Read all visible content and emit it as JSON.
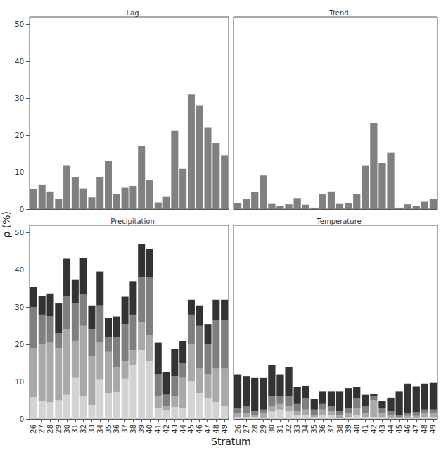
{
  "chart_data": [
    {
      "type": "bar",
      "title": "Lag",
      "ylabel": "ρ (%)",
      "tick_labels": "y",
      "grid": false,
      "categories": [
        "26",
        "27",
        "28",
        "29",
        "30",
        "31",
        "32",
        "33",
        "34",
        "35",
        "36",
        "37",
        "38",
        "39",
        "40",
        "41",
        "42",
        "43",
        "44",
        "45",
        "46",
        "47",
        "48",
        "49"
      ],
      "color": "#808080",
      "values": [
        5.5,
        6.5,
        4.8,
        2.8,
        11.7,
        8.7,
        5.6,
        3.2,
        8.7,
        13.1,
        4.0,
        5.8,
        6.3,
        17.0,
        7.8,
        1.8,
        3.3,
        21.2,
        10.9,
        31.0,
        28.1,
        22.0,
        17.9,
        14.6
      ],
      "ylim": [
        0,
        52
      ],
      "yticks": [
        0,
        10,
        20,
        30,
        40,
        50
      ]
    },
    {
      "type": "bar",
      "title": "Trend",
      "tick_labels": false,
      "grid": false,
      "categories": [
        "26",
        "27",
        "28",
        "29",
        "30",
        "31",
        "32",
        "33",
        "34",
        "35",
        "36",
        "37",
        "38",
        "39",
        "40",
        "41",
        "42",
        "43",
        "44",
        "45",
        "46",
        "47",
        "48",
        "49"
      ],
      "color": "#808080",
      "values": [
        1.7,
        2.7,
        4.6,
        9.1,
        1.4,
        0.8,
        1.3,
        3.0,
        1.2,
        0.4,
        4.0,
        4.8,
        1.4,
        1.6,
        4.0,
        11.7,
        23.4,
        12.5,
        15.3,
        0.4,
        1.3,
        0.8,
        2.0,
        2.7
      ],
      "ylim": [
        0,
        52
      ],
      "yticks": [
        0,
        10,
        20,
        30,
        40,
        50
      ]
    },
    {
      "type": "bar",
      "title": "Precipitation",
      "xlabel": "Stratum",
      "tick_labels": true,
      "grid": false,
      "stacked": true,
      "categories": [
        "26",
        "27",
        "28",
        "29",
        "30",
        "31",
        "32",
        "33",
        "34",
        "35",
        "36",
        "37",
        "38",
        "39",
        "40",
        "41",
        "42",
        "43",
        "44",
        "45",
        "46",
        "47",
        "48",
        "49"
      ],
      "series": [
        {
          "color": "#d3d3d3",
          "values": [
            5.8,
            4.8,
            4.5,
            5,
            6.5,
            11,
            6,
            3.8,
            10.5,
            7,
            7.2,
            10.8,
            14.5,
            18.5,
            15.5,
            3,
            2.2,
            3.2,
            3,
            10.2,
            7,
            5.5,
            4.5,
            3.5
          ]
        },
        {
          "color": "#a9a9a9",
          "values": [
            13.2,
            15.2,
            16,
            14,
            17.5,
            10,
            19,
            13.2,
            10,
            11,
            6.8,
            4.7,
            4,
            7.5,
            7,
            3,
            1.3,
            2.8,
            8,
            9.8,
            6.5,
            6.5,
            9,
            10
          ]
        },
        {
          "color": "#7f7f7f",
          "values": [
            11,
            8,
            7,
            4,
            9,
            10,
            8.5,
            7,
            10,
            4,
            8,
            10,
            9.5,
            12,
            15.5,
            6,
            3,
            5.5,
            4,
            8,
            11.5,
            8,
            13,
            13
          ]
        },
        {
          "color": "#333333",
          "values": [
            5.5,
            5,
            6.2,
            8,
            10,
            6.5,
            9.8,
            6.5,
            9.1,
            5.2,
            5.5,
            7.3,
            9,
            9,
            7.6,
            8.5,
            6,
            7.3,
            6,
            4,
            5.5,
            5.5,
            5.5,
            5.5
          ]
        }
      ],
      "ylim": [
        0,
        52
      ],
      "yticks": [
        0,
        10,
        20,
        30,
        40,
        50
      ]
    },
    {
      "type": "bar",
      "title": "Temperature",
      "tick_labels": "x",
      "grid": false,
      "stacked": true,
      "categories": [
        "26",
        "27",
        "28",
        "29",
        "30",
        "31",
        "32",
        "33",
        "34",
        "35",
        "36",
        "37",
        "38",
        "39",
        "40",
        "41",
        "42",
        "43",
        "44",
        "45",
        "46",
        "47",
        "48",
        "49"
      ],
      "series": [
        {
          "color": "#d3d3d3",
          "values": [
            0.5,
            0.5,
            0.5,
            0.3,
            2,
            2.5,
            2,
            1,
            1,
            0.5,
            1,
            1,
            0.3,
            0.5,
            1,
            0.5,
            0.5,
            0.5,
            0.3,
            0.2,
            0.3,
            0.3,
            0.5,
            0.5
          ]
        },
        {
          "color": "#a9a9a9",
          "values": [
            1,
            1,
            0.5,
            1.2,
            1.5,
            1.5,
            1.5,
            1,
            1.5,
            0.5,
            1.5,
            1,
            0.7,
            1,
            2,
            1,
            4.5,
            1,
            0.7,
            0.3,
            0.5,
            0.5,
            1,
            1
          ]
        },
        {
          "color": "#7f7f7f",
          "values": [
            1.5,
            2,
            1,
            1,
            2.5,
            2,
            2.5,
            2,
            3,
            1.5,
            1.5,
            1.5,
            1,
            1.5,
            2.5,
            2,
            1.2,
            1.5,
            1,
            0.5,
            0.7,
            1,
            1,
            1
          ]
        },
        {
          "color": "#333333",
          "values": [
            9,
            8,
            9,
            8.5,
            8.5,
            6,
            8,
            4.7,
            3.4,
            2.8,
            3.3,
            3.8,
            5.3,
            5.3,
            3,
            3,
            0.5,
            1.8,
            3.7,
            6.3,
            8,
            7,
            7,
            7.2
          ]
        }
      ],
      "ylim": [
        0,
        52
      ],
      "yticks": [
        0,
        10,
        20,
        30,
        40,
        50
      ]
    }
  ]
}
